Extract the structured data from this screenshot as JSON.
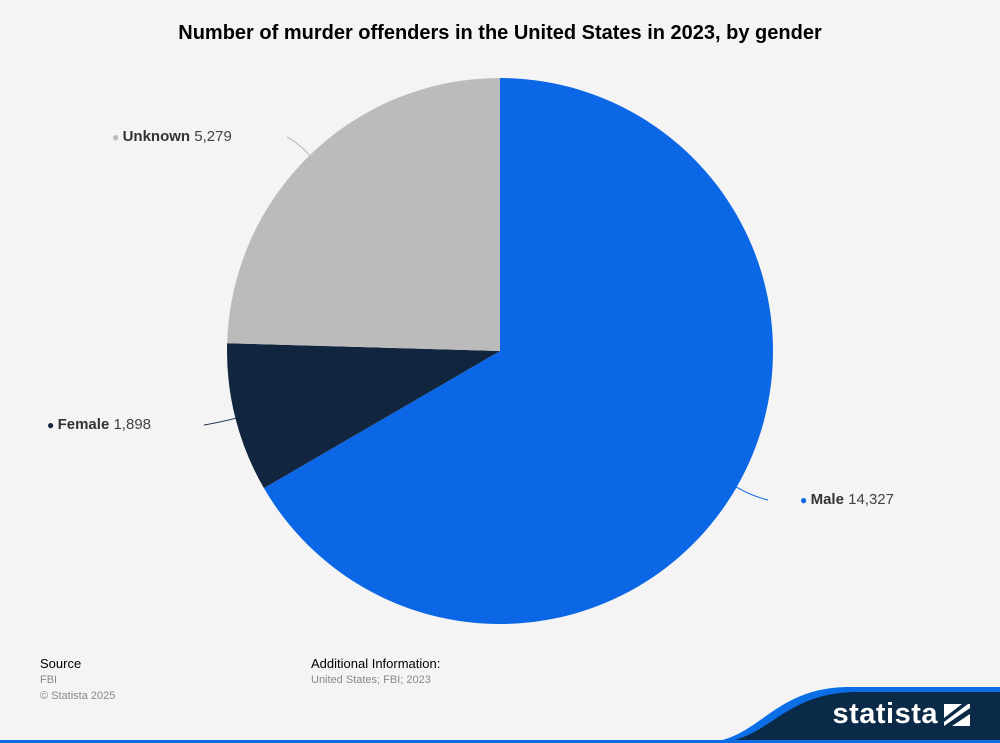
{
  "chart_data": {
    "type": "pie",
    "title": "Number of murder offenders in the United States in 2023, by gender",
    "slices": [
      {
        "label": "Male",
        "value": 14327,
        "display": "14,327",
        "color": "#0b67e6"
      },
      {
        "label": "Female",
        "value": 1898,
        "display": "1,898",
        "color": "#11253f"
      },
      {
        "label": "Unknown",
        "value": 5279,
        "display": "5,279",
        "color": "#bbbbbb"
      }
    ]
  },
  "footer": {
    "source_label": "Source",
    "source_value": "FBI",
    "copyright": "© Statista 2025",
    "additional_label": "Additional Information:",
    "additional_value": "United States; FBI; 2023"
  },
  "brand": {
    "name": "statista",
    "color": "#0b2a48",
    "accent": "#0b6ee6"
  }
}
